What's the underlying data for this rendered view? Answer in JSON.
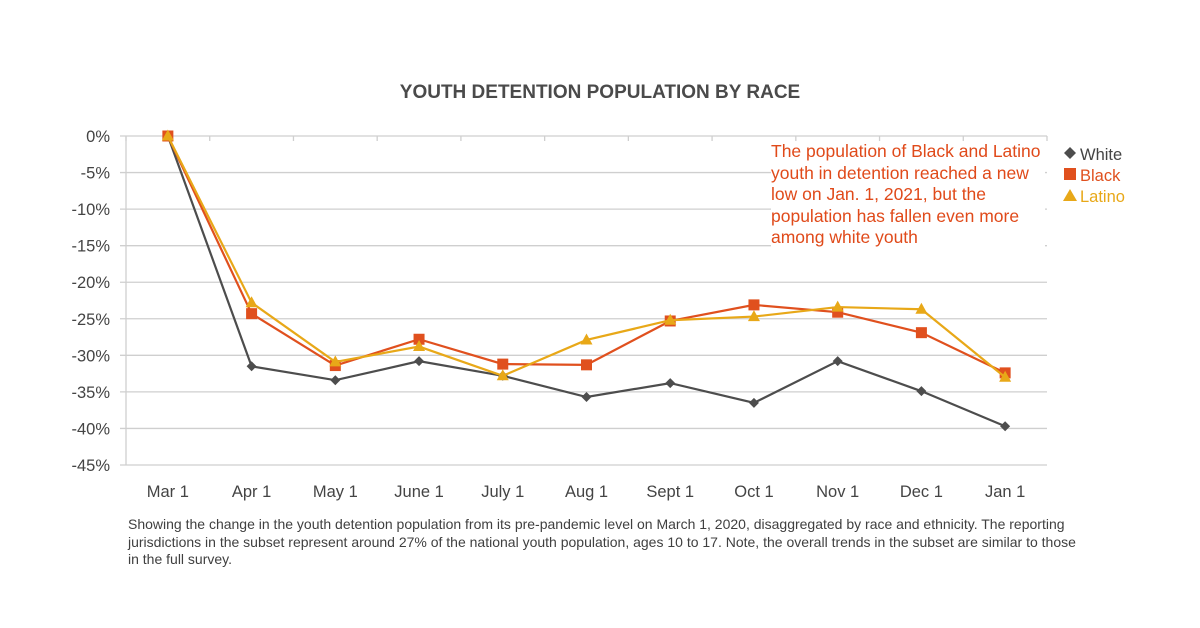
{
  "chart_data": {
    "type": "line",
    "title": "YOUTH DETENTION POPULATION BY RACE",
    "xlabel": "",
    "ylabel": "",
    "categories": [
      "Mar 1",
      "Apr 1",
      "May 1",
      "June 1",
      "July 1",
      "Aug 1",
      "Sept 1",
      "Oct 1",
      "Nov 1",
      "Dec 1",
      "Jan 1"
    ],
    "ylim": [
      -45,
      0
    ],
    "yticks": [
      0,
      -5,
      -10,
      -15,
      -20,
      -25,
      -30,
      -35,
      -40,
      -45
    ],
    "ytick_labels": [
      "0%",
      "-5%",
      "-10%",
      "-15%",
      "-20%",
      "-25%",
      "-30%",
      "-35%",
      "-40%",
      "-45%"
    ],
    "grid": true,
    "legend_position": "top-right",
    "series": [
      {
        "name": "White",
        "color": "#4d4d4d",
        "marker": "diamond",
        "values": [
          0,
          -31.5,
          -33.4,
          -30.8,
          -32.8,
          -35.7,
          -33.8,
          -36.5,
          -30.8,
          -34.9,
          -39.7
        ]
      },
      {
        "name": "Black",
        "color": "#e0501e",
        "marker": "square",
        "values": [
          0,
          -24.3,
          -31.4,
          -27.8,
          -31.2,
          -31.3,
          -25.3,
          -23.1,
          -24.1,
          -26.9,
          -32.4
        ]
      },
      {
        "name": "Latino",
        "color": "#e8a818",
        "marker": "triangle",
        "values": [
          0,
          -22.8,
          -30.9,
          -28.8,
          -32.8,
          -27.9,
          -25.2,
          -24.7,
          -23.4,
          -23.7,
          -33.0
        ]
      }
    ],
    "annotation": "The population of Black and Latino youth in detention reached a new low on Jan. 1, 2021, but the population has fallen even more among white youth",
    "annotation_color": "#e04a1a"
  },
  "caption": "Showing the change in the youth detention population from its pre-pandemic level on March 1, 2020, disaggregated by race and ethnicity. The reporting jurisdictions in the subset represent around 27% of the national youth population, ages 10 to 17. Note, the overall trends in the subset are similar to those in the full survey."
}
